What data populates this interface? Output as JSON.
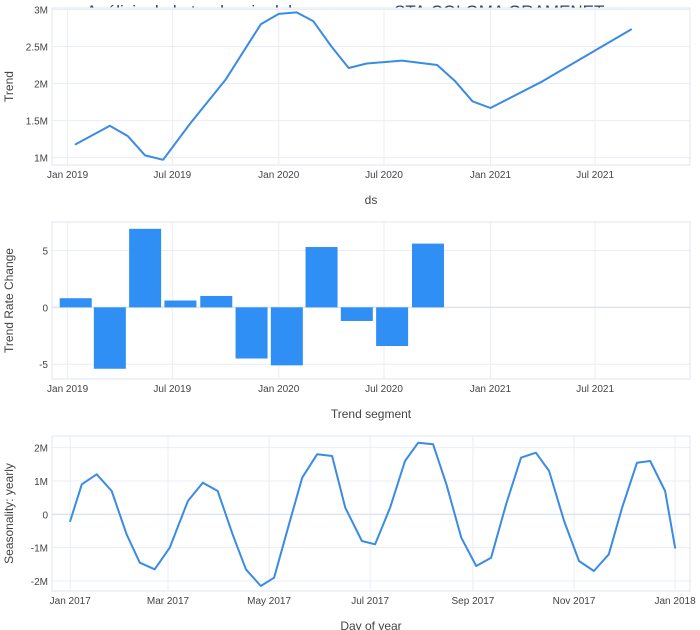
{
  "title": "Análisis de la tendencia del consumo en STA.COLOMA GRAMENET",
  "colors": {
    "line": "#3a8be6",
    "bar": "#2f8ff5",
    "grid": "#e9edf4",
    "zero": "#dfe4ec",
    "axis_text": "#444444"
  },
  "chart_data": [
    {
      "type": "line",
      "ylabel": "Trend",
      "xlabel": "ds",
      "x_ticks": [
        "Jan 2019",
        "Jul 2019",
        "Jan 2020",
        "Jul 2020",
        "Jan 2021",
        "Jul 2021"
      ],
      "y_ticks": [
        "1M",
        "1.5M",
        "2M",
        "2.5M",
        "3M"
      ],
      "ylim": [
        900000,
        3020000
      ],
      "xlim": [
        "2018-12-05",
        "2021-12-12"
      ],
      "x": [
        "2019-01-15",
        "2019-03-15",
        "2019-04-15",
        "2019-05-15",
        "2019-06-15",
        "2019-08-01",
        "2019-10-01",
        "2019-12-01",
        "2020-01-01",
        "2020-02-01",
        "2020-03-01",
        "2020-04-01",
        "2020-05-01",
        "2020-06-01",
        "2020-08-01",
        "2020-10-01",
        "2020-11-01",
        "2020-12-01",
        "2021-01-01",
        "2021-04-01",
        "2021-09-01"
      ],
      "y": [
        1180000,
        1430000,
        1290000,
        1030000,
        970000,
        1460000,
        2050000,
        2800000,
        2940000,
        2960000,
        2840000,
        2500000,
        2210000,
        2270000,
        2310000,
        2250000,
        2030000,
        1760000,
        1670000,
        2030000,
        2730000
      ]
    },
    {
      "type": "bar",
      "ylabel": "Trend Rate Change",
      "xlabel": "Trend segment",
      "x_ticks": [
        "Jan 2019",
        "Jul 2019",
        "Jan 2020",
        "Jul 2020",
        "Jan 2021",
        "Jul 2021"
      ],
      "y_ticks": [
        "-5",
        "0",
        "5"
      ],
      "ylim": [
        -6.3,
        7.5
      ],
      "xlim": [
        "2018-12-05",
        "2021-12-12"
      ],
      "x": [
        "2019-01-15",
        "2019-03-15",
        "2019-05-15",
        "2019-07-15",
        "2019-09-15",
        "2019-11-15",
        "2020-01-15",
        "2020-03-15",
        "2020-05-15",
        "2020-07-15",
        "2020-09-15",
        "2020-11-15"
      ],
      "values": [
        0.8,
        -5.4,
        6.9,
        0.6,
        1.0,
        -4.5,
        -5.1,
        5.3,
        -1.2,
        -3.4,
        5.6,
        0.0
      ]
    },
    {
      "type": "line",
      "ylabel": "Seasonality: yearly",
      "xlabel": "Day of year",
      "x_ticks": [
        "Jan 2017",
        "Mar 2017",
        "May 2017",
        "Jul 2017",
        "Sep 2017",
        "Nov 2017",
        "Jan 2018"
      ],
      "y_ticks": [
        "-2M",
        "-1M",
        "0",
        "1M",
        "2M"
      ],
      "ylim": [
        -2300000,
        2350000
      ],
      "xlim": [
        "2016-12-21",
        "2018-01-10"
      ],
      "x": [
        "2017-01-01",
        "2017-01-08",
        "2017-01-17",
        "2017-01-26",
        "2017-02-04",
        "2017-02-12",
        "2017-02-21",
        "2017-03-02",
        "2017-03-13",
        "2017-03-22",
        "2017-03-31",
        "2017-04-09",
        "2017-04-17",
        "2017-04-26",
        "2017-05-04",
        "2017-05-13",
        "2017-05-21",
        "2017-05-30",
        "2017-06-08",
        "2017-06-16",
        "2017-06-26",
        "2017-07-04",
        "2017-07-13",
        "2017-07-22",
        "2017-07-30",
        "2017-08-08",
        "2017-08-16",
        "2017-08-25",
        "2017-09-03",
        "2017-09-12",
        "2017-09-21",
        "2017-09-30",
        "2017-10-09",
        "2017-10-17",
        "2017-10-26",
        "2017-11-04",
        "2017-11-13",
        "2017-11-22",
        "2017-11-30",
        "2017-12-09",
        "2017-12-17",
        "2017-12-26",
        "2018-01-01"
      ],
      "y": [
        -200000,
        900000,
        1200000,
        700000,
        -600000,
        -1450000,
        -1650000,
        -1000000,
        400000,
        950000,
        700000,
        -600000,
        -1650000,
        -2150000,
        -1900000,
        -300000,
        1100000,
        1800000,
        1750000,
        200000,
        -800000,
        -900000,
        200000,
        1600000,
        2150000,
        2100000,
        900000,
        -700000,
        -1550000,
        -1300000,
        300000,
        1700000,
        1850000,
        1300000,
        -200000,
        -1400000,
        -1700000,
        -1200000,
        200000,
        1550000,
        1600000,
        700000,
        -1000000
      ]
    }
  ]
}
